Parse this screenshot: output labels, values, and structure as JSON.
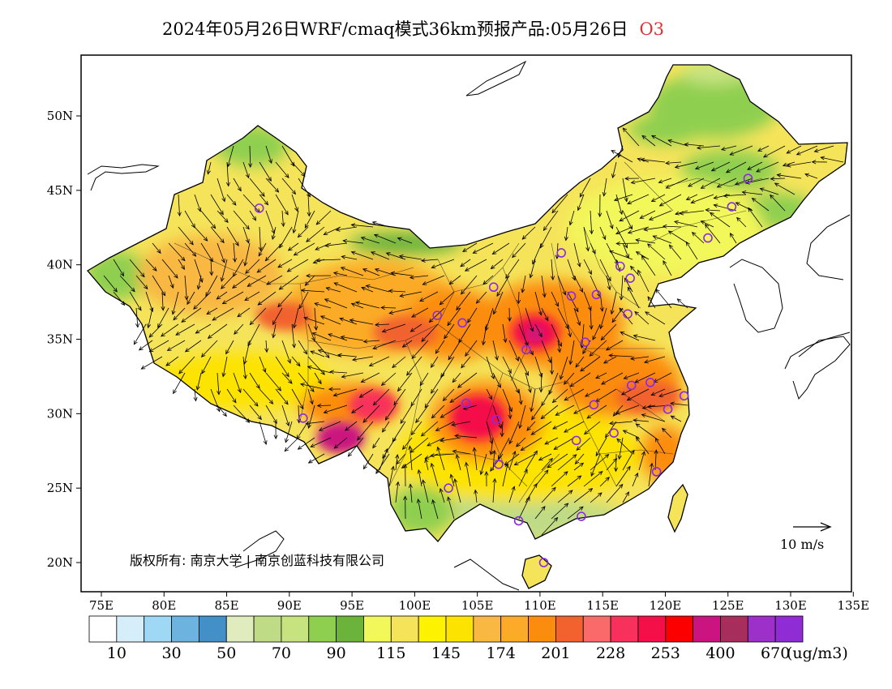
{
  "title": {
    "text": "2024年05月26日WRF/cmaq模式36km预报产品:05月26日",
    "species": "O3"
  },
  "axes": {
    "lon_ticks": [
      "75E",
      "80E",
      "85E",
      "90E",
      "95E",
      "100E",
      "105E",
      "110E",
      "115E",
      "120E",
      "125E",
      "130E",
      "135E"
    ],
    "lat_ticks": [
      "50N",
      "45N",
      "40N",
      "35N",
      "30N",
      "25N",
      "20N"
    ]
  },
  "copyright": "版权所有: 南京大学 | 南京创蓝科技有限公司",
  "wind_scale": {
    "label": "10 m/s"
  },
  "colorbar": {
    "colors": [
      "#ffffff",
      "#d6eefa",
      "#9fd8f5",
      "#6db3e0",
      "#438fc8",
      "#e0ecbe",
      "#bfdb86",
      "#c7e380",
      "#8fcf50",
      "#6cb33c",
      "#f2f75a",
      "#f5e45a",
      "#fdf200",
      "#fde300",
      "#f8b842",
      "#fbab28",
      "#fc8c0e",
      "#f2622e",
      "#fb6a6a",
      "#f8305c",
      "#f40f48",
      "#fc0000",
      "#cb1480",
      "#a72e5c",
      "#9c30c8",
      "#8f2cd6"
    ],
    "labels": [
      "10",
      "30",
      "50",
      "70",
      "90",
      "115",
      "145",
      "174",
      "201",
      "228",
      "253",
      "400",
      "670"
    ],
    "unit": "(ug/m3)"
  },
  "markers": [
    {
      "lon": 87.6,
      "lat": 43.8
    },
    {
      "lon": 91.1,
      "lat": 29.7
    },
    {
      "lon": 101.8,
      "lat": 36.6
    },
    {
      "lon": 103.8,
      "lat": 36.1
    },
    {
      "lon": 106.3,
      "lat": 38.5
    },
    {
      "lon": 111.7,
      "lat": 40.8
    },
    {
      "lon": 116.4,
      "lat": 39.9
    },
    {
      "lon": 117.2,
      "lat": 39.1
    },
    {
      "lon": 112.5,
      "lat": 37.9
    },
    {
      "lon": 114.5,
      "lat": 38.0
    },
    {
      "lon": 117.0,
      "lat": 36.7
    },
    {
      "lon": 113.6,
      "lat": 34.8
    },
    {
      "lon": 108.9,
      "lat": 34.3
    },
    {
      "lon": 104.1,
      "lat": 30.7
    },
    {
      "lon": 106.5,
      "lat": 29.6
    },
    {
      "lon": 117.3,
      "lat": 31.9
    },
    {
      "lon": 118.8,
      "lat": 32.1
    },
    {
      "lon": 114.3,
      "lat": 30.6
    },
    {
      "lon": 112.9,
      "lat": 28.2
    },
    {
      "lon": 115.9,
      "lat": 28.7
    },
    {
      "lon": 120.2,
      "lat": 30.3
    },
    {
      "lon": 121.5,
      "lat": 31.2
    },
    {
      "lon": 119.3,
      "lat": 26.1
    },
    {
      "lon": 106.7,
      "lat": 26.6
    },
    {
      "lon": 102.7,
      "lat": 25.0
    },
    {
      "lon": 108.3,
      "lat": 22.8
    },
    {
      "lon": 113.3,
      "lat": 23.1
    },
    {
      "lon": 110.3,
      "lat": 20.0
    },
    {
      "lon": 123.4,
      "lat": 41.8
    },
    {
      "lon": 125.3,
      "lat": 43.9
    },
    {
      "lon": 126.6,
      "lat": 45.8
    }
  ]
}
